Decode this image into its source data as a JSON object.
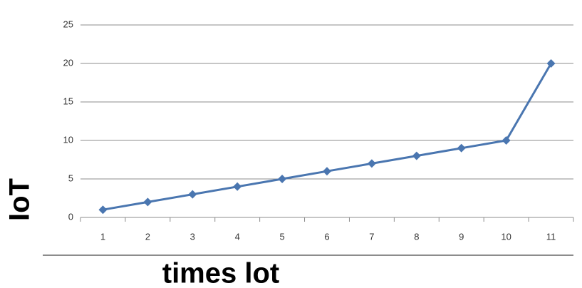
{
  "chart_data": {
    "type": "line",
    "categories": [
      "1",
      "2",
      "3",
      "4",
      "5",
      "6",
      "7",
      "8",
      "9",
      "10",
      "11"
    ],
    "values": [
      1,
      2,
      3,
      4,
      5,
      6,
      7,
      8,
      9,
      10,
      20
    ],
    "color": "#4a76b0",
    "ylim": [
      0,
      25
    ],
    "yticks": [
      0,
      5,
      10,
      15,
      20,
      25
    ],
    "grid": true,
    "xlabel": "times lot",
    "ylabel": "IoT"
  }
}
